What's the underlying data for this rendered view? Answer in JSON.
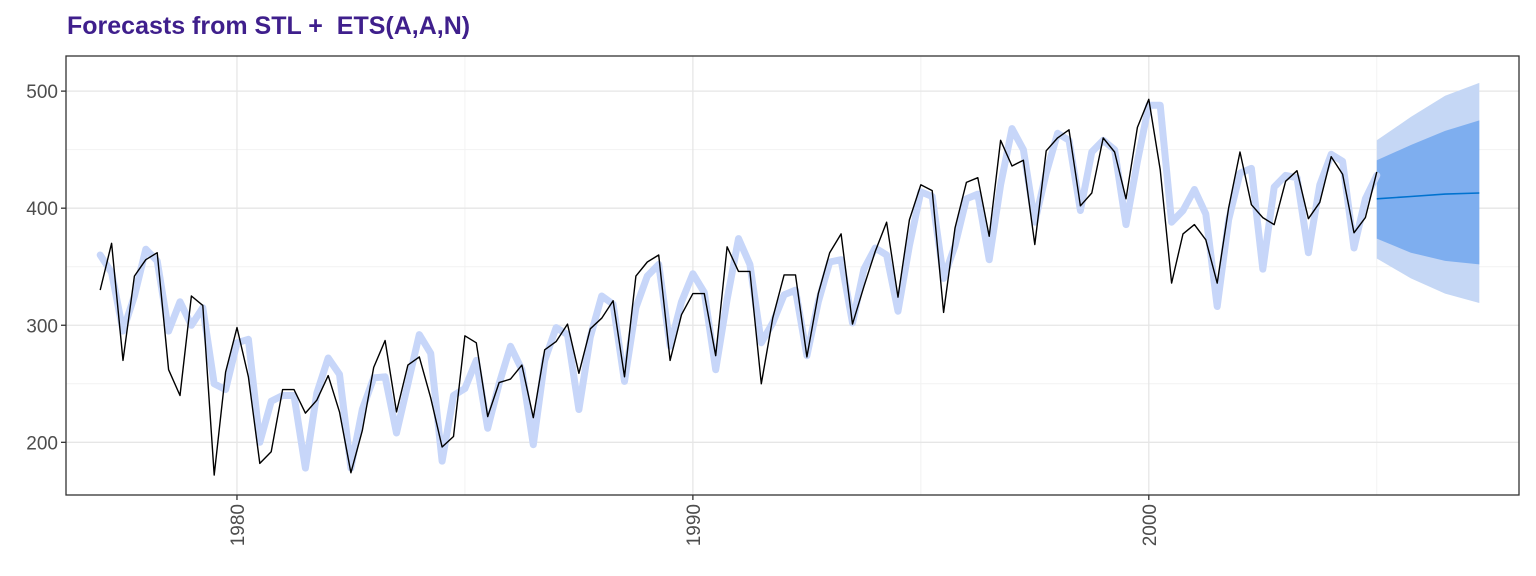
{
  "chart_data": {
    "type": "line",
    "title": "Forecasts from STL +  ETS(A,A,N)",
    "xlabel": "",
    "ylabel": "",
    "xlim": [
      1976.25,
      2008.12
    ],
    "ylim": [
      155,
      530
    ],
    "x_ticks": [
      1980,
      1990,
      2000
    ],
    "y_ticks": [
      200,
      300,
      400,
      500
    ],
    "grid": true,
    "series": [
      {
        "role": "observed",
        "color": "#000000",
        "x_start": 1977.0,
        "step": 0.25,
        "values": [
          330,
          370,
          270,
          342,
          356,
          362,
          262,
          240,
          325,
          317,
          172,
          260,
          298,
          256,
          182,
          192,
          245,
          245,
          225,
          236,
          257,
          226,
          174,
          210,
          264,
          287,
          226,
          266,
          273,
          238,
          196,
          205,
          291,
          285,
          222,
          251,
          254,
          266,
          221,
          279,
          286,
          301,
          259,
          297,
          306,
          321,
          256,
          342,
          354,
          360,
          270,
          309,
          327,
          327,
          274,
          367,
          346,
          346,
          250,
          306,
          343,
          343,
          273,
          327,
          362,
          378,
          301,
          333,
          363,
          388,
          324,
          390,
          420,
          415,
          311,
          383,
          422,
          426,
          376,
          458,
          436,
          441,
          369,
          449,
          460,
          467,
          402,
          413,
          460,
          448,
          408,
          469,
          493,
          433,
          336,
          378,
          386,
          373,
          336,
          400,
          448,
          403,
          392,
          386,
          423,
          432,
          391,
          405,
          444,
          429,
          379,
          392,
          431
        ]
      },
      {
        "role": "fitted",
        "color": "#c7d6f9",
        "x_start": 1977.0,
        "step": 0.25,
        "values": [
          360,
          345,
          295,
          325,
          365,
          355,
          295,
          320,
          300,
          315,
          250,
          245,
          285,
          288,
          200,
          235,
          240,
          240,
          178,
          242,
          272,
          258,
          178,
          228,
          255,
          256,
          208,
          250,
          292,
          276,
          184,
          240,
          246,
          270,
          212,
          250,
          282,
          262,
          198,
          270,
          298,
          292,
          228,
          290,
          325,
          318,
          252,
          315,
          342,
          352,
          282,
          320,
          344,
          328,
          262,
          322,
          374,
          352,
          285,
          302,
          326,
          330,
          274,
          320,
          354,
          356,
          302,
          348,
          366,
          360,
          312,
          368,
          414,
          410,
          340,
          368,
          408,
          412,
          356,
          420,
          468,
          450,
          388,
          430,
          464,
          458,
          398,
          448,
          458,
          450,
          386,
          440,
          488,
          488,
          388,
          398,
          416,
          395,
          316,
          390,
          430,
          434,
          348,
          418,
          428,
          426,
          362,
          420,
          446,
          440,
          366,
          408,
          428
        ]
      }
    ],
    "forecast": {
      "x_start": 2005.0,
      "x_end": 2007.25,
      "mean": [
        408,
        410,
        412,
        413
      ],
      "lo80": [
        374,
        362,
        355,
        352
      ],
      "hi80": [
        441,
        454,
        466,
        475
      ],
      "lo95": [
        357,
        340,
        327,
        319
      ],
      "hi95": [
        458,
        478,
        496,
        507
      ],
      "color_mean": "#0072cf",
      "color_80": "#7eaeef",
      "color_95": "#c5d7f5"
    }
  }
}
